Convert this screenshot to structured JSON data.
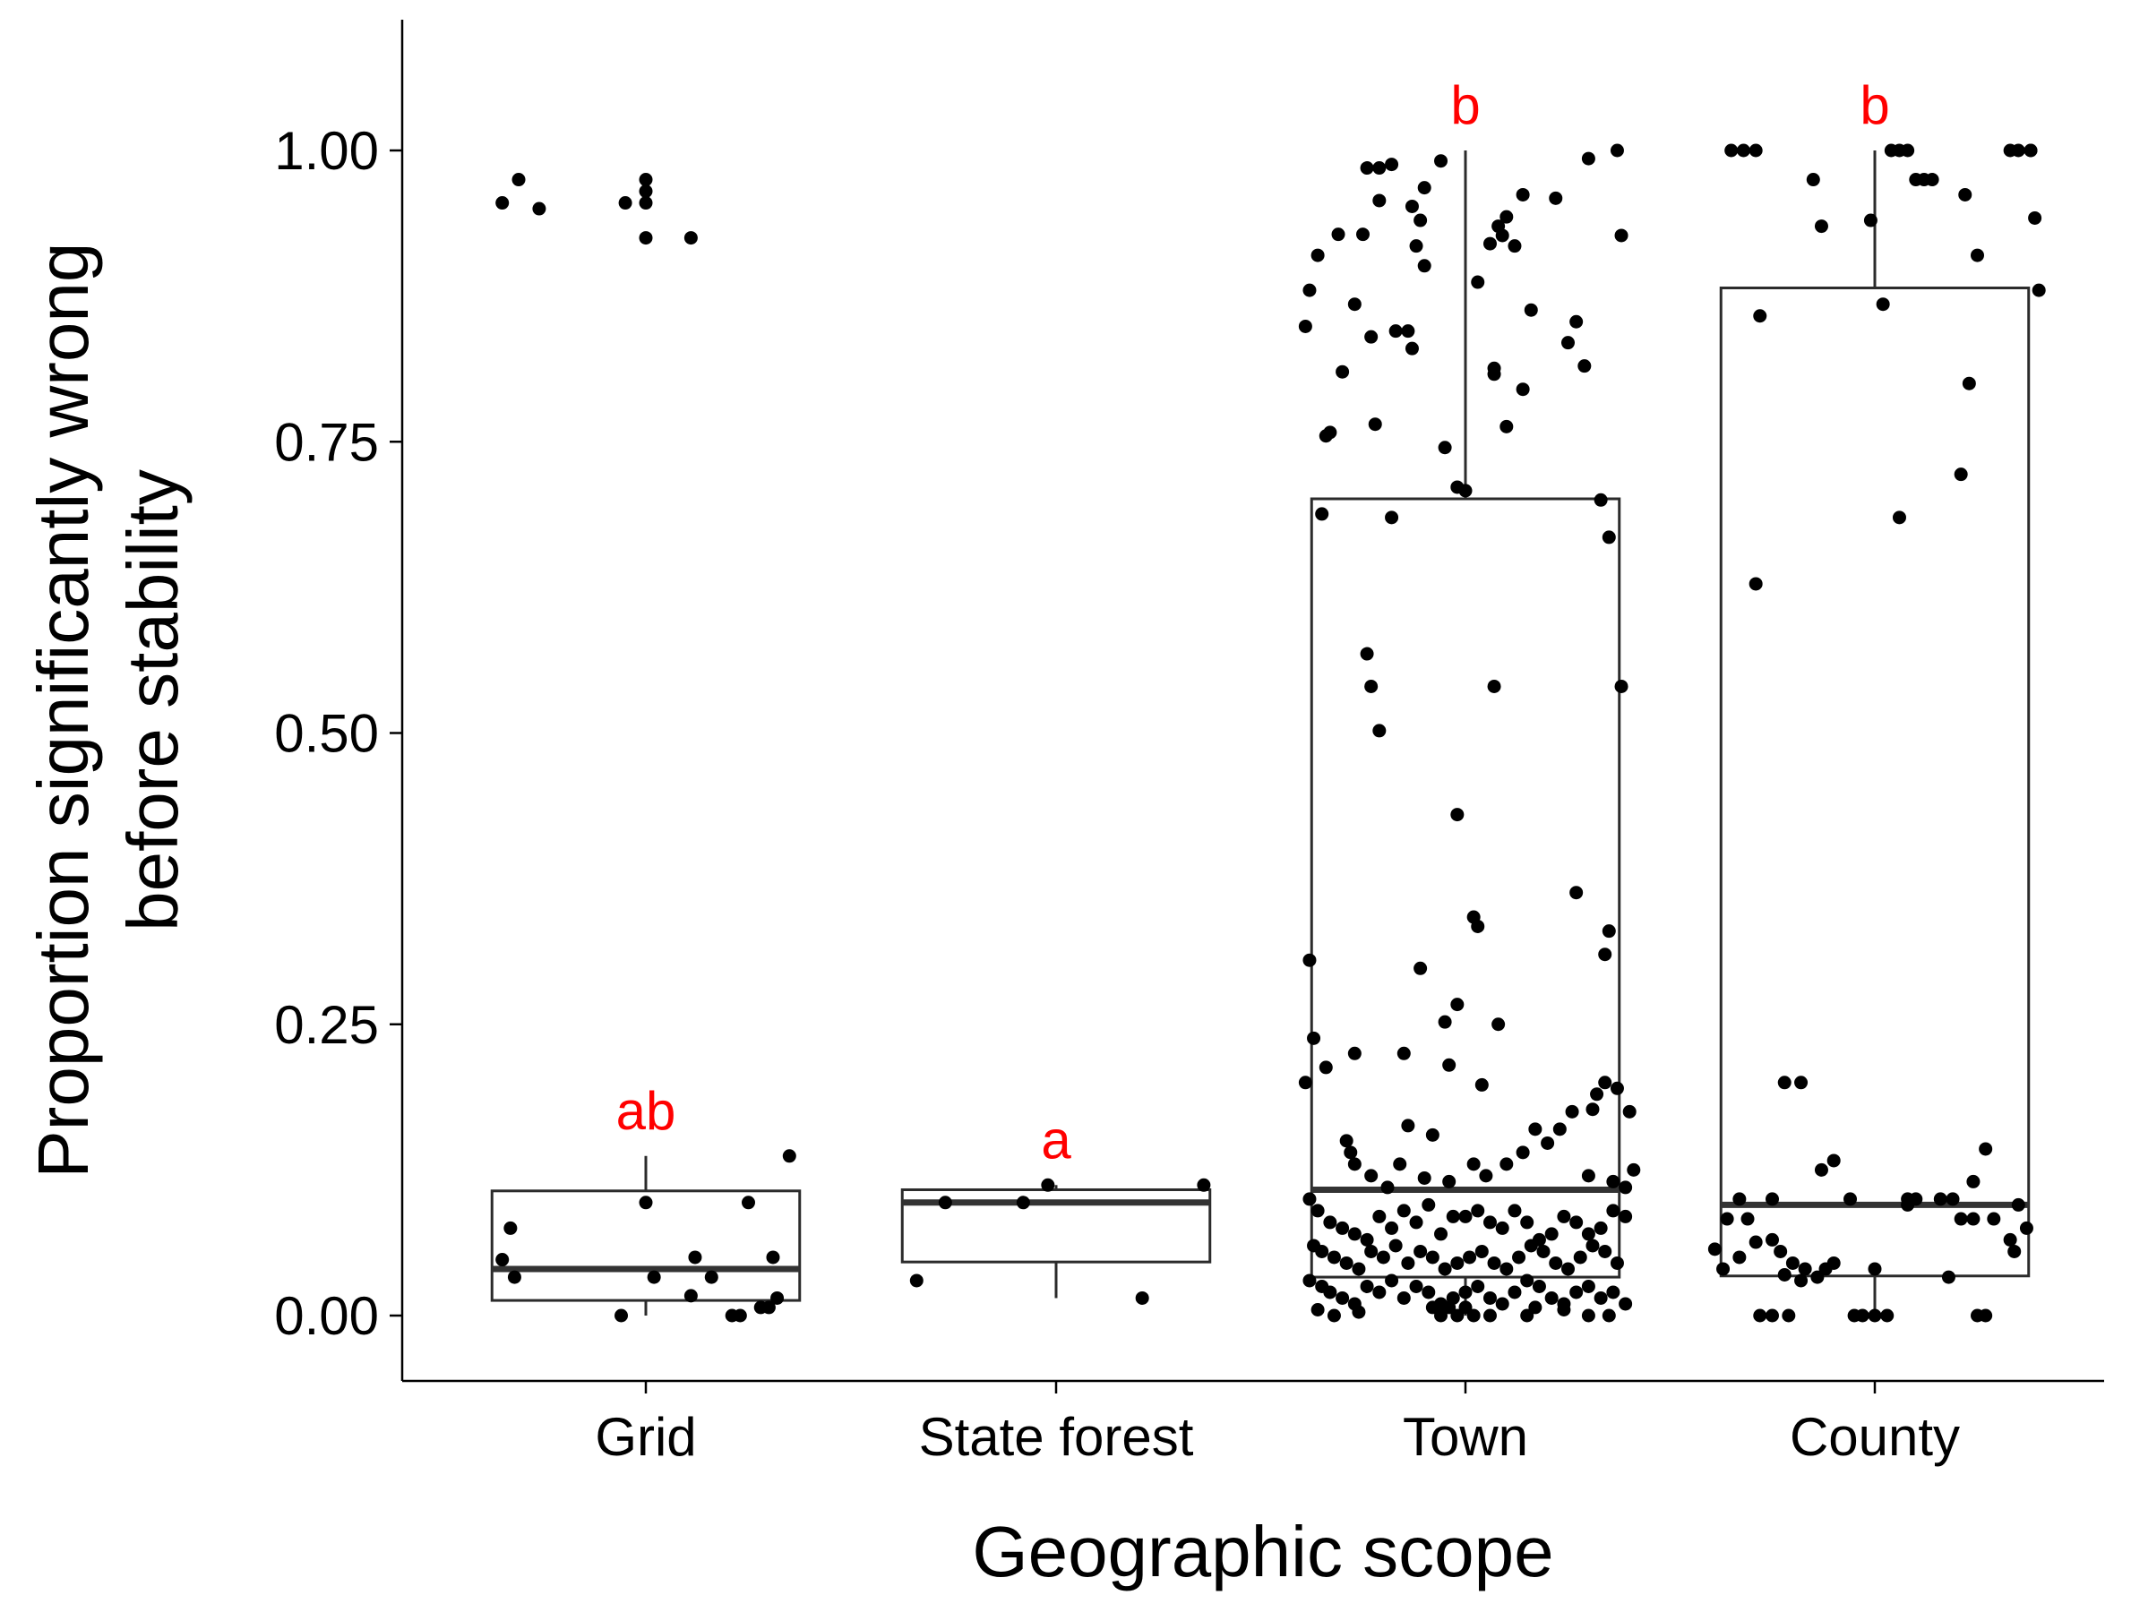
{
  "chart_data": {
    "type": "boxplot",
    "xlabel": "Geographic scope",
    "ylabel_lines": [
      "Proportion significantly wrong",
      "before stability"
    ],
    "ylim": [
      -0.05,
      1.12
    ],
    "yticks": [
      0.0,
      0.25,
      0.5,
      0.75,
      1.0
    ],
    "ytick_labels": [
      "0.00",
      "0.25",
      "0.50",
      "0.75",
      "1.00"
    ],
    "categories": [
      "Grid",
      "State forest",
      "Town",
      "County"
    ],
    "grid": false,
    "colors": {
      "points": "#000000",
      "box": "#2b2b2b",
      "median": "#333333",
      "significance": "#ff0000"
    },
    "groups": [
      {
        "name": "Grid",
        "significance": "ab",
        "box": {
          "whisker_low": 0.0,
          "q1": 0.013,
          "median": 0.04,
          "q3": 0.107,
          "whisker_high": 0.137
        },
        "points": [
          [
            -0.35,
            0.955
          ],
          [
            -0.31,
            0.975
          ],
          [
            -0.26,
            0.95
          ],
          [
            -0.05,
            0.955
          ],
          [
            0.0,
            0.975
          ],
          [
            0.0,
            0.965
          ],
          [
            0.0,
            0.955
          ],
          [
            0.0,
            0.925
          ],
          [
            0.11,
            0.925
          ],
          [
            -0.35,
            0.048
          ],
          [
            -0.33,
            0.075
          ],
          [
            -0.32,
            0.033
          ],
          [
            -0.06,
            0.0
          ],
          [
            0.0,
            0.097
          ],
          [
            0.02,
            0.033
          ],
          [
            0.11,
            0.017
          ],
          [
            0.12,
            0.05
          ],
          [
            0.16,
            0.033
          ],
          [
            0.21,
            0.0
          ],
          [
            0.23,
            0.0
          ],
          [
            0.25,
            0.097
          ],
          [
            0.28,
            0.007
          ],
          [
            0.3,
            0.007
          ],
          [
            0.31,
            0.05
          ],
          [
            0.32,
            0.015
          ],
          [
            0.35,
            0.137
          ]
        ]
      },
      {
        "name": "State forest",
        "significance": "a",
        "box": {
          "whisker_low": 0.015,
          "q1": 0.046,
          "median": 0.097,
          "q3": 0.108,
          "whisker_high": 0.112
        },
        "points": [
          [
            -0.34,
            0.03
          ],
          [
            -0.27,
            0.097
          ],
          [
            -0.08,
            0.097
          ],
          [
            -0.02,
            0.112
          ],
          [
            0.21,
            0.015
          ],
          [
            0.36,
            0.112
          ]
        ]
      },
      {
        "name": "Town",
        "significance": "b",
        "box": {
          "whisker_low": 0.0,
          "q1": 0.033,
          "median": 0.108,
          "q3": 0.701,
          "whisker_high": 1.0
        },
        "points": [
          [
            -0.39,
            0.849
          ],
          [
            -0.38,
            0.88
          ],
          [
            -0.36,
            0.91
          ],
          [
            -0.35,
            0.688
          ],
          [
            -0.34,
            0.755
          ],
          [
            -0.33,
            0.758
          ],
          [
            -0.31,
            0.928
          ],
          [
            -0.3,
            0.81
          ],
          [
            -0.27,
            0.868
          ],
          [
            -0.25,
            0.928
          ],
          [
            -0.24,
            0.985
          ],
          [
            -0.23,
            0.84
          ],
          [
            -0.22,
            0.765
          ],
          [
            -0.21,
            0.985
          ],
          [
            -0.21,
            0.957
          ],
          [
            -0.18,
            0.988
          ],
          [
            -0.18,
            0.685
          ],
          [
            -0.17,
            0.845
          ],
          [
            -0.14,
            0.845
          ],
          [
            -0.13,
            0.83
          ],
          [
            -0.13,
            0.952
          ],
          [
            -0.12,
            0.918
          ],
          [
            -0.11,
            0.94
          ],
          [
            -0.1,
            0.901
          ],
          [
            -0.1,
            0.968
          ],
          [
            -0.06,
            0.991
          ],
          [
            -0.05,
            0.745
          ],
          [
            -0.02,
            0.711
          ],
          [
            0.0,
            0.708
          ],
          [
            0.03,
            0.887
          ],
          [
            0.06,
            0.92
          ],
          [
            0.07,
            0.808
          ],
          [
            0.07,
            0.813
          ],
          [
            0.08,
            0.935
          ],
          [
            0.09,
            0.927
          ],
          [
            0.1,
            0.943
          ],
          [
            0.1,
            0.763
          ],
          [
            0.12,
            0.918
          ],
          [
            0.14,
            0.962
          ],
          [
            0.14,
            0.795
          ],
          [
            0.16,
            0.863
          ],
          [
            0.22,
            0.959
          ],
          [
            0.25,
            0.835
          ],
          [
            0.27,
            0.853
          ],
          [
            0.29,
            0.815
          ],
          [
            0.3,
            0.993
          ],
          [
            0.33,
            0.7
          ],
          [
            0.35,
            0.668
          ],
          [
            0.37,
            1.0
          ],
          [
            0.38,
            0.927
          ],
          [
            0.38,
            0.54
          ],
          [
            -0.24,
            0.568
          ],
          [
            -0.23,
            0.54
          ],
          [
            -0.21,
            0.502
          ],
          [
            -0.02,
            0.43
          ],
          [
            0.07,
            0.54
          ],
          [
            0.02,
            0.342
          ],
          [
            0.03,
            0.334
          ],
          [
            -0.11,
            0.298
          ],
          [
            -0.02,
            0.267
          ],
          [
            0.08,
            0.25
          ],
          [
            0.04,
            0.198
          ],
          [
            -0.05,
            0.252
          ],
          [
            -0.04,
            0.215
          ],
          [
            0.27,
            0.363
          ],
          [
            0.34,
            0.31
          ],
          [
            0.35,
            0.33
          ],
          [
            -0.38,
            0.305
          ],
          [
            -0.37,
            0.238
          ],
          [
            -0.39,
            0.2
          ],
          [
            -0.34,
            0.213
          ],
          [
            -0.27,
            0.225
          ],
          [
            -0.15,
            0.225
          ],
          [
            -0.08,
            0.155
          ],
          [
            -0.14,
            0.163
          ],
          [
            0.17,
            0.16
          ],
          [
            0.2,
            0.148
          ],
          [
            0.23,
            0.16
          ],
          [
            0.26,
            0.175
          ],
          [
            0.31,
            0.177
          ],
          [
            0.32,
            0.19
          ],
          [
            0.34,
            0.2
          ],
          [
            0.37,
            0.195
          ],
          [
            0.4,
            0.175
          ],
          [
            -0.29,
            0.15
          ],
          [
            -0.28,
            0.14
          ],
          [
            -0.27,
            0.13
          ],
          [
            -0.23,
            0.12
          ],
          [
            -0.19,
            0.11
          ],
          [
            -0.16,
            0.13
          ],
          [
            -0.1,
            0.118
          ],
          [
            -0.04,
            0.115
          ],
          [
            0.02,
            0.13
          ],
          [
            0.05,
            0.12
          ],
          [
            0.1,
            0.13
          ],
          [
            0.14,
            0.14
          ],
          [
            0.3,
            0.12
          ],
          [
            0.36,
            0.115
          ],
          [
            0.39,
            0.11
          ],
          [
            0.41,
            0.125
          ],
          [
            -0.38,
            0.1
          ],
          [
            -0.36,
            0.09
          ],
          [
            -0.33,
            0.08
          ],
          [
            -0.3,
            0.075
          ],
          [
            -0.27,
            0.07
          ],
          [
            -0.24,
            0.065
          ],
          [
            -0.21,
            0.085
          ],
          [
            -0.18,
            0.075
          ],
          [
            -0.15,
            0.09
          ],
          [
            -0.12,
            0.08
          ],
          [
            -0.09,
            0.095
          ],
          [
            -0.06,
            0.07
          ],
          [
            -0.03,
            0.085
          ],
          [
            0.0,
            0.085
          ],
          [
            0.03,
            0.09
          ],
          [
            0.06,
            0.08
          ],
          [
            0.09,
            0.075
          ],
          [
            0.12,
            0.09
          ],
          [
            0.15,
            0.08
          ],
          [
            0.18,
            0.065
          ],
          [
            0.21,
            0.07
          ],
          [
            0.24,
            0.085
          ],
          [
            0.27,
            0.08
          ],
          [
            0.3,
            0.07
          ],
          [
            0.33,
            0.075
          ],
          [
            0.36,
            0.09
          ],
          [
            0.39,
            0.085
          ],
          [
            -0.37,
            0.06
          ],
          [
            -0.35,
            0.055
          ],
          [
            -0.32,
            0.05
          ],
          [
            -0.29,
            0.045
          ],
          [
            -0.26,
            0.04
          ],
          [
            -0.23,
            0.055
          ],
          [
            -0.2,
            0.05
          ],
          [
            -0.17,
            0.06
          ],
          [
            -0.14,
            0.045
          ],
          [
            -0.11,
            0.055
          ],
          [
            -0.08,
            0.05
          ],
          [
            -0.05,
            0.04
          ],
          [
            -0.02,
            0.045
          ],
          [
            0.01,
            0.05
          ],
          [
            0.04,
            0.055
          ],
          [
            0.07,
            0.045
          ],
          [
            0.1,
            0.04
          ],
          [
            0.13,
            0.05
          ],
          [
            0.16,
            0.06
          ],
          [
            0.19,
            0.055
          ],
          [
            0.22,
            0.045
          ],
          [
            0.25,
            0.04
          ],
          [
            0.28,
            0.05
          ],
          [
            0.31,
            0.06
          ],
          [
            0.34,
            0.055
          ],
          [
            0.37,
            0.045
          ],
          [
            -0.38,
            0.03
          ],
          [
            -0.35,
            0.025
          ],
          [
            -0.33,
            0.02
          ],
          [
            -0.3,
            0.015
          ],
          [
            -0.27,
            0.01
          ],
          [
            -0.24,
            0.025
          ],
          [
            -0.21,
            0.02
          ],
          [
            -0.18,
            0.03
          ],
          [
            -0.15,
            0.015
          ],
          [
            -0.12,
            0.025
          ],
          [
            -0.09,
            0.02
          ],
          [
            -0.06,
            0.01
          ],
          [
            -0.03,
            0.015
          ],
          [
            0.0,
            0.02
          ],
          [
            0.03,
            0.025
          ],
          [
            0.06,
            0.015
          ],
          [
            0.09,
            0.01
          ],
          [
            0.12,
            0.02
          ],
          [
            0.15,
            0.03
          ],
          [
            0.18,
            0.025
          ],
          [
            0.21,
            0.015
          ],
          [
            0.24,
            0.01
          ],
          [
            0.27,
            0.02
          ],
          [
            0.3,
            0.025
          ],
          [
            0.33,
            0.015
          ],
          [
            0.36,
            0.02
          ],
          [
            0.39,
            0.01
          ],
          [
            -0.36,
            0.005
          ],
          [
            -0.32,
            0.0
          ],
          [
            -0.26,
            0.003
          ],
          [
            -0.08,
            0.007
          ],
          [
            -0.06,
            0.0
          ],
          [
            -0.04,
            0.007
          ],
          [
            -0.02,
            0.0
          ],
          [
            0.0,
            0.007
          ],
          [
            0.02,
            0.0
          ],
          [
            0.06,
            0.0
          ],
          [
            0.15,
            0.0
          ],
          [
            0.17,
            0.007
          ],
          [
            0.24,
            0.005
          ],
          [
            0.3,
            0.0
          ],
          [
            0.35,
            0.0
          ]
        ]
      },
      {
        "name": "County",
        "significance": "b",
        "box": {
          "whisker_low": 0.0,
          "q1": 0.034,
          "median": 0.095,
          "q3": 0.882,
          "whisker_high": 1.0
        },
        "points": [
          [
            -0.35,
            1.0
          ],
          [
            -0.32,
            1.0
          ],
          [
            -0.29,
            1.0
          ],
          [
            -0.15,
            0.975
          ],
          [
            -0.13,
            0.935
          ],
          [
            -0.01,
            0.94
          ],
          [
            -0.28,
            0.858
          ],
          [
            0.02,
            0.868
          ],
          [
            0.04,
            1.0
          ],
          [
            0.06,
            1.0
          ],
          [
            0.08,
            1.0
          ],
          [
            0.1,
            0.975
          ],
          [
            0.12,
            0.975
          ],
          [
            0.14,
            0.975
          ],
          [
            0.22,
            0.962
          ],
          [
            0.25,
            0.91
          ],
          [
            0.33,
            1.0
          ],
          [
            0.35,
            1.0
          ],
          [
            0.38,
            1.0
          ],
          [
            0.39,
            0.942
          ],
          [
            0.4,
            0.88
          ],
          [
            0.38,
            1.0
          ],
          [
            0.23,
            0.8
          ],
          [
            0.21,
            0.722
          ],
          [
            0.06,
            0.685
          ],
          [
            -0.29,
            0.628
          ],
          [
            -0.22,
            0.2
          ],
          [
            -0.18,
            0.2
          ],
          [
            -0.13,
            0.125
          ],
          [
            -0.1,
            0.133
          ],
          [
            -0.25,
            0.1
          ],
          [
            -0.06,
            0.1
          ],
          [
            0.08,
            0.1
          ],
          [
            0.1,
            0.1
          ],
          [
            0.16,
            0.1
          ],
          [
            0.19,
            0.1
          ],
          [
            0.24,
            0.115
          ],
          [
            0.27,
            0.143
          ],
          [
            0.35,
            0.095
          ],
          [
            -0.39,
            0.057
          ],
          [
            -0.36,
            0.083
          ],
          [
            -0.33,
            0.1
          ],
          [
            -0.31,
            0.083
          ],
          [
            -0.29,
            0.063
          ],
          [
            -0.25,
            0.065
          ],
          [
            -0.23,
            0.055
          ],
          [
            -0.17,
            0.04
          ],
          [
            -0.14,
            0.033
          ],
          [
            -0.12,
            0.04
          ],
          [
            -0.1,
            0.045
          ],
          [
            0.0,
            0.04
          ],
          [
            0.08,
            0.095
          ],
          [
            0.18,
            0.033
          ],
          [
            0.21,
            0.083
          ],
          [
            0.24,
            0.083
          ],
          [
            0.29,
            0.083
          ],
          [
            0.33,
            0.065
          ],
          [
            0.34,
            0.055
          ],
          [
            0.37,
            0.075
          ],
          [
            -0.37,
            0.04
          ],
          [
            -0.33,
            0.05
          ],
          [
            -0.22,
            0.035
          ],
          [
            -0.2,
            0.045
          ],
          [
            -0.18,
            0.03
          ],
          [
            -0.28,
            0.0
          ],
          [
            -0.25,
            0.0
          ],
          [
            -0.21,
            0.0
          ],
          [
            -0.05,
            0.0
          ],
          [
            -0.03,
            0.0
          ],
          [
            0.0,
            0.0
          ],
          [
            0.03,
            0.0
          ],
          [
            0.25,
            0.0
          ],
          [
            0.27,
            0.0
          ]
        ]
      }
    ]
  }
}
